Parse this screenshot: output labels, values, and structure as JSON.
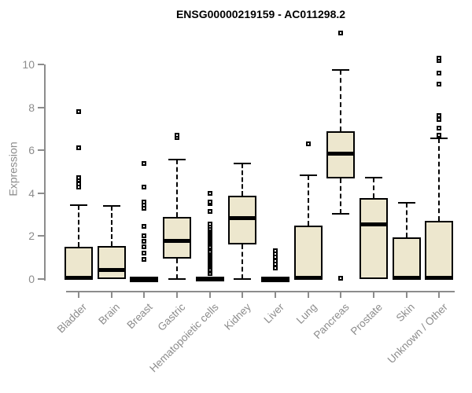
{
  "chart_data": {
    "type": "boxplot",
    "title": "ENSG00000219159 - AC011298.2",
    "ylabel": "Expression",
    "ylim": [
      0,
      10
    ],
    "yticks": [
      0,
      2,
      4,
      6,
      8,
      10
    ],
    "grid": false,
    "legend": "none",
    "categories": [
      "Bladder",
      "Brain",
      "Breast",
      "Gastric",
      "Hematopoietic cells",
      "Kidney",
      "Liver",
      "Lung",
      "Pancreas",
      "Prostate",
      "Skin",
      "Unknown / Other"
    ],
    "series": [
      {
        "category": "Bladder",
        "whisker_low": 0,
        "q1": 0,
        "median": 0.06,
        "q3": 1.5,
        "whisker_high": 3.45,
        "outliers": [
          4.3,
          4.45,
          4.6,
          4.72,
          6.1,
          7.8
        ]
      },
      {
        "category": "Brain",
        "whisker_low": 0,
        "q1": 0,
        "median": 0.42,
        "q3": 1.53,
        "whisker_high": 3.4,
        "outliers": []
      },
      {
        "category": "Breast",
        "whisker_low": 0,
        "q1": 0,
        "median": 0.02,
        "q3": 0.08,
        "whisker_high": 0.08,
        "outliers": [
          0.9,
          1.2,
          1.5,
          1.75,
          2.0,
          2.45,
          3.3,
          3.45,
          3.6,
          4.3,
          5.4
        ]
      },
      {
        "category": "Gastric",
        "whisker_low": 0,
        "q1": 0.95,
        "median": 1.78,
        "q3": 2.9,
        "whisker_high": 5.55,
        "outliers": [
          6.6,
          6.7
        ]
      },
      {
        "category": "Hematopoietic cells",
        "whisker_low": 0,
        "q1": 0,
        "median": 0.02,
        "q3": 0.1,
        "whisker_high": 0.1,
        "outliers": [
          0.25,
          0.35,
          0.45,
          0.55,
          0.62,
          0.7,
          0.78,
          0.85,
          0.92,
          1.0,
          1.08,
          1.15,
          1.22,
          1.3,
          1.38,
          1.45,
          1.52,
          1.6,
          1.68,
          1.75,
          1.82,
          1.9,
          1.98,
          2.05,
          2.12,
          2.2,
          2.28,
          2.35,
          2.45,
          2.55,
          3.15,
          3.5,
          3.6,
          4.0
        ]
      },
      {
        "category": "Kidney",
        "whisker_low": 0,
        "q1": 1.6,
        "median": 2.83,
        "q3": 3.87,
        "whisker_high": 5.37,
        "outliers": []
      },
      {
        "category": "Liver",
        "whisker_low": 0,
        "q1": 0,
        "median": 0.02,
        "q3": 0.08,
        "whisker_high": 0.08,
        "outliers": [
          0.5,
          0.68,
          0.85,
          1.02,
          1.18,
          1.32
        ]
      },
      {
        "category": "Lung",
        "whisker_low": 0,
        "q1": 0,
        "median": 0.06,
        "q3": 2.48,
        "whisker_high": 4.85,
        "outliers": [
          6.3
        ]
      },
      {
        "category": "Pancreas",
        "whisker_low": 3.05,
        "q1": 4.7,
        "median": 5.85,
        "q3": 6.87,
        "whisker_high": 9.75,
        "outliers": [
          0.02,
          11.45
        ]
      },
      {
        "category": "Prostate",
        "whisker_low": 0,
        "q1": 0,
        "median": 2.55,
        "q3": 3.76,
        "whisker_high": 4.72,
        "outliers": []
      },
      {
        "category": "Skin",
        "whisker_low": 0,
        "q1": 0,
        "median": 0.06,
        "q3": 1.95,
        "whisker_high": 3.57,
        "outliers": []
      },
      {
        "category": "Unknown / Other",
        "whisker_low": 0,
        "q1": 0,
        "median": 0.06,
        "q3": 2.7,
        "whisker_high": 6.55,
        "outliers": [
          6.72,
          7.02,
          7.45,
          7.62,
          9.1,
          9.6,
          10.2,
          10.3
        ]
      }
    ],
    "colors": {
      "box_fill": "#EDE7CE",
      "box_border": "#000000",
      "median": "#000000",
      "whisker": "#000000",
      "outlier_border": "#000000",
      "axis": "#8C8C8C",
      "tick_label": "#8C8C8C",
      "title": "#000000",
      "background": "#FFFFFF"
    }
  }
}
